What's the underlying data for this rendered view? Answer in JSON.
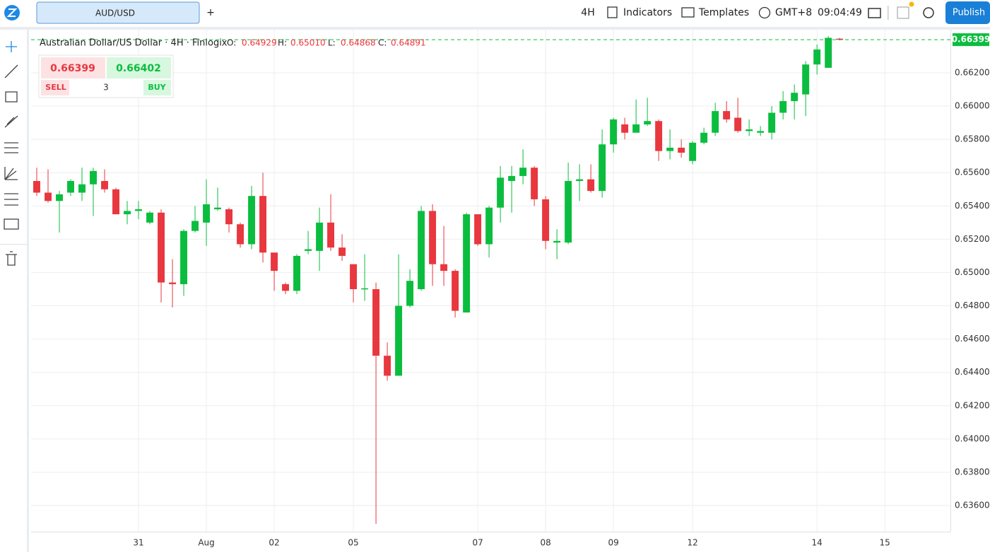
{
  "toolbar": {
    "tab": "AUD/USD",
    "add": "+",
    "interval": "4H",
    "indicators": "Indicators",
    "templates": "Templates",
    "timezone": "GMT+8",
    "clock": "09:04:49",
    "publish": "Publish"
  },
  "legend": {
    "name": "Australian Dollar/US Dollar · 4H · Finlogix",
    "o_label": "O:",
    "o": "0.64929",
    "h_label": "H:",
    "h": "0.65010",
    "l_label": "L:",
    "l": "0.64868",
    "c_label": "C:",
    "c": "0.64891"
  },
  "trade": {
    "sell_price": "0.66399",
    "buy_price": "0.66402",
    "sell": "SELL",
    "quantity": "3",
    "buy": "BUY"
  },
  "chart_data": {
    "type": "candlestick",
    "up_color": "#0bbd3e",
    "down_color": "#e8373e",
    "grid": true,
    "open": [
      0.6555,
      0.6548,
      0.6543,
      0.6548,
      0.6548,
      0.6553,
      0.6555,
      0.655,
      0.6535,
      0.6537,
      0.653,
      0.6536,
      0.6494,
      0.6493,
      0.6525,
      0.653,
      0.6538,
      0.6538,
      0.6529,
      0.6517,
      0.6546,
      0.6512,
      0.6493,
      0.6489,
      0.6513,
      0.6513,
      0.653,
      0.6515,
      0.6505,
      0.649,
      0.649,
      0.645,
      0.6438,
      0.648,
      0.649,
      0.6537,
      0.6505,
      0.6501,
      0.6476,
      0.6535,
      0.6517,
      0.6539,
      0.6555,
      0.6558,
      0.6563,
      0.6544,
      0.6518,
      0.6518,
      0.6555,
      0.6556,
      0.6549,
      0.6577,
      0.6589,
      0.6584,
      0.6589,
      0.6591,
      0.6573,
      0.6575,
      0.6567,
      0.6578,
      0.6584,
      0.6597,
      0.6593,
      0.6585,
      0.6584,
      0.6584,
      0.6596,
      0.6603,
      0.6607,
      0.6625,
      0.6623,
      0.66405
    ],
    "high": [
      0.6563,
      0.6562,
      0.6549,
      0.6556,
      0.6563,
      0.6563,
      0.6562,
      0.6551,
      0.6543,
      0.6543,
      0.6537,
      0.6538,
      0.6508,
      0.6526,
      0.654,
      0.6556,
      0.6551,
      0.6539,
      0.653,
      0.6552,
      0.656,
      0.6512,
      0.6494,
      0.6511,
      0.6525,
      0.6539,
      0.6547,
      0.6523,
      0.6505,
      0.6511,
      0.6494,
      0.6458,
      0.6511,
      0.6502,
      0.654,
      0.6541,
      0.6528,
      0.6502,
      0.6536,
      0.6535,
      0.654,
      0.6564,
      0.6564,
      0.6574,
      0.6564,
      0.6546,
      0.6526,
      0.6566,
      0.6565,
      0.6565,
      0.6586,
      0.6593,
      0.6593,
      0.6604,
      0.6605,
      0.6592,
      0.6586,
      0.658,
      0.6579,
      0.6587,
      0.6602,
      0.6603,
      0.6605,
      0.6592,
      0.6588,
      0.66,
      0.6609,
      0.6613,
      0.6627,
      0.6637,
      0.6642,
      0.6641
    ],
    "low": [
      0.6546,
      0.6542,
      0.6524,
      0.6546,
      0.6543,
      0.6534,
      0.6548,
      0.6535,
      0.6529,
      0.6532,
      0.6529,
      0.6482,
      0.6479,
      0.6486,
      0.6524,
      0.6516,
      0.6537,
      0.6524,
      0.6515,
      0.6514,
      0.6506,
      0.6489,
      0.6487,
      0.6487,
      0.6511,
      0.6501,
      0.6513,
      0.6507,
      0.6482,
      0.6483,
      0.6349,
      0.6435,
      0.6438,
      0.6479,
      0.6489,
      0.6492,
      0.6492,
      0.6473,
      0.6476,
      0.6516,
      0.6509,
      0.653,
      0.6536,
      0.6553,
      0.654,
      0.6514,
      0.6508,
      0.6517,
      0.6543,
      0.6548,
      0.6545,
      0.6572,
      0.658,
      0.6584,
      0.6588,
      0.6567,
      0.6568,
      0.6569,
      0.6565,
      0.6577,
      0.6582,
      0.659,
      0.6584,
      0.6582,
      0.6582,
      0.658,
      0.6592,
      0.6592,
      0.6594,
      0.6619,
      0.6623,
      0.66395
    ],
    "close": [
      0.6548,
      0.6543,
      0.6547,
      0.6555,
      0.6553,
      0.6561,
      0.655,
      0.6535,
      0.6537,
      0.6538,
      0.6536,
      0.6494,
      0.6493,
      0.6525,
      0.6531,
      0.6541,
      0.6539,
      0.6529,
      0.6517,
      0.6546,
      0.6512,
      0.6501,
      0.6489,
      0.651,
      0.6514,
      0.653,
      0.6515,
      0.651,
      0.649,
      0.64905,
      0.645,
      0.6438,
      0.648,
      0.6495,
      0.6537,
      0.6505,
      0.6501,
      0.6477,
      0.6535,
      0.6517,
      0.6539,
      0.6557,
      0.6558,
      0.6563,
      0.6544,
      0.6519,
      0.6519,
      0.6555,
      0.6556,
      0.6549,
      0.6577,
      0.6592,
      0.6584,
      0.6589,
      0.6591,
      0.6573,
      0.6575,
      0.6572,
      0.6578,
      0.6584,
      0.6597,
      0.6592,
      0.6585,
      0.6586,
      0.6585,
      0.6596,
      0.6603,
      0.6608,
      0.6625,
      0.6634,
      0.6641,
      0.66399
    ],
    "xlim": [
      -0.5,
      80.8
    ],
    "xticks": [
      {
        "value": 9,
        "label": "31"
      },
      {
        "value": 15,
        "label": "Aug"
      },
      {
        "value": 21,
        "label": "02"
      },
      {
        "value": 28,
        "label": "05"
      },
      {
        "value": 39,
        "label": "07"
      },
      {
        "value": 45,
        "label": "08"
      },
      {
        "value": 51,
        "label": "09"
      },
      {
        "value": 58,
        "label": "12"
      },
      {
        "value": 69,
        "label": "14"
      },
      {
        "value": 75,
        "label": "15"
      }
    ],
    "ylim": [
      0.63443,
      0.66459
    ],
    "yticks": [
      {
        "value": 0.636,
        "label": "0.63600"
      },
      {
        "value": 0.638,
        "label": "0.63800"
      },
      {
        "value": 0.64,
        "label": "0.64000"
      },
      {
        "value": 0.642,
        "label": "0.64200"
      },
      {
        "value": 0.644,
        "label": "0.64400"
      },
      {
        "value": 0.646,
        "label": "0.64600"
      },
      {
        "value": 0.648,
        "label": "0.64800"
      },
      {
        "value": 0.65,
        "label": "0.65000"
      },
      {
        "value": 0.652,
        "label": "0.65200"
      },
      {
        "value": 0.654,
        "label": "0.65400"
      },
      {
        "value": 0.656,
        "label": "0.65600"
      },
      {
        "value": 0.658,
        "label": "0.65800"
      },
      {
        "value": 0.66,
        "label": "0.66000"
      },
      {
        "value": 0.662,
        "label": "0.66200"
      }
    ],
    "last_price": {
      "value": 0.66399,
      "label": "0.66399"
    }
  }
}
